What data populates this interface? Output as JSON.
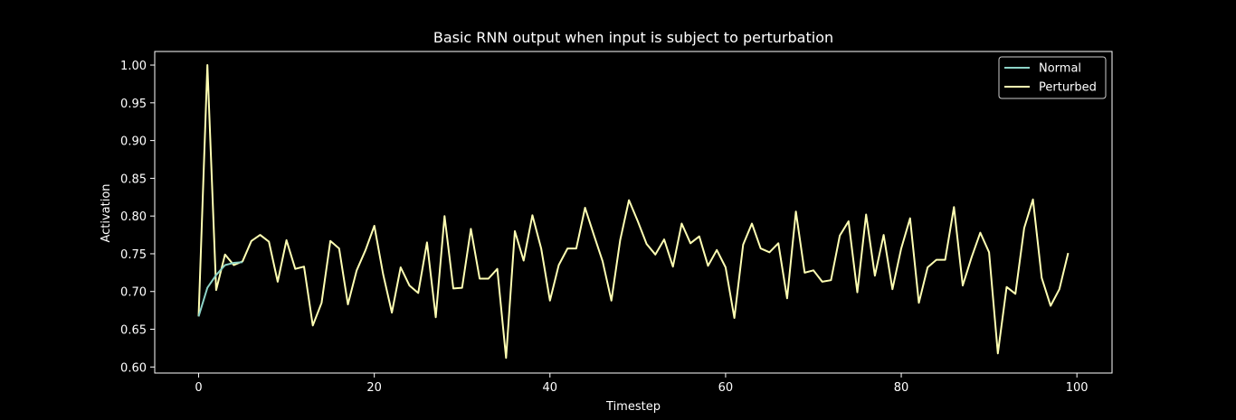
{
  "chart_data": {
    "type": "line",
    "title": "Basic RNN output when input is subject to perturbation",
    "xlabel": "Timestep",
    "ylabel": "Activation",
    "xlim": [
      -5,
      104
    ],
    "ylim": [
      0.592,
      1.018
    ],
    "xticks": [
      0,
      20,
      40,
      60,
      80,
      100
    ],
    "yticks": [
      0.6,
      0.65,
      0.7,
      0.75,
      0.8,
      0.85,
      0.9,
      0.95,
      1.0
    ],
    "grid": false,
    "legend_position": "top-right",
    "series": [
      {
        "name": "Normal",
        "color": "#8dd3c7",
        "x": [
          0,
          1,
          2,
          3,
          4,
          5
        ],
        "y": [
          0.667,
          0.705,
          0.722,
          0.735,
          0.738,
          0.739
        ]
      },
      {
        "name": "Perturbed",
        "color": "#ffffb3",
        "x": [
          0,
          1,
          2,
          3,
          4,
          5,
          6,
          7,
          8,
          9,
          10,
          11,
          12,
          13,
          14,
          15,
          16,
          17,
          18,
          19,
          20,
          21,
          22,
          23,
          24,
          25,
          26,
          27,
          28,
          29,
          30,
          31,
          32,
          33,
          34,
          35,
          36,
          37,
          38,
          39,
          40,
          41,
          42,
          43,
          44,
          45,
          46,
          47,
          48,
          49,
          50,
          51,
          52,
          53,
          54,
          55,
          56,
          57,
          58,
          59,
          60,
          61,
          62,
          63,
          64,
          65,
          66,
          67,
          68,
          69,
          70,
          71,
          72,
          73,
          74,
          75,
          76,
          77,
          78,
          79,
          80,
          81,
          82,
          83,
          84,
          85,
          86,
          87,
          88,
          89,
          90,
          91,
          92,
          93,
          94,
          95,
          96,
          97,
          98,
          99
        ],
        "y": [
          0.667,
          1.0,
          0.702,
          0.749,
          0.735,
          0.74,
          0.767,
          0.775,
          0.766,
          0.713,
          0.768,
          0.73,
          0.733,
          0.655,
          0.685,
          0.767,
          0.757,
          0.683,
          0.728,
          0.755,
          0.787,
          0.723,
          0.672,
          0.732,
          0.708,
          0.698,
          0.765,
          0.666,
          0.8,
          0.704,
          0.705,
          0.783,
          0.717,
          0.717,
          0.73,
          0.612,
          0.78,
          0.741,
          0.801,
          0.757,
          0.688,
          0.735,
          0.757,
          0.757,
          0.811,
          0.775,
          0.74,
          0.688,
          0.768,
          0.821,
          0.793,
          0.763,
          0.749,
          0.769,
          0.733,
          0.79,
          0.764,
          0.773,
          0.734,
          0.755,
          0.732,
          0.665,
          0.762,
          0.79,
          0.757,
          0.752,
          0.764,
          0.691,
          0.806,
          0.725,
          0.728,
          0.713,
          0.715,
          0.774,
          0.793,
          0.699,
          0.802,
          0.721,
          0.775,
          0.703,
          0.757,
          0.797,
          0.685,
          0.732,
          0.742,
          0.742,
          0.812,
          0.708,
          0.745,
          0.778,
          0.752,
          0.618,
          0.706,
          0.697,
          0.784,
          0.822,
          0.718,
          0.681,
          0.703,
          0.751
        ]
      }
    ]
  }
}
